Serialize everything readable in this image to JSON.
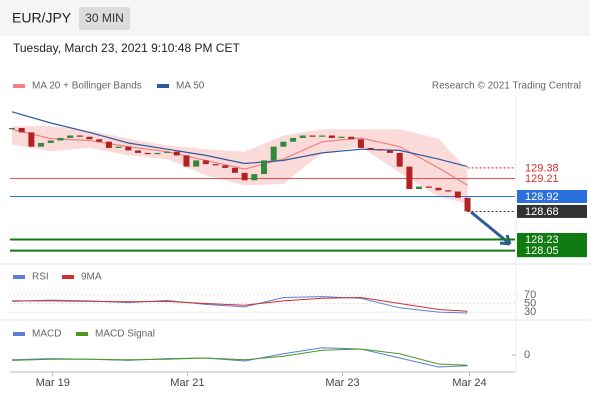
{
  "header": {
    "symbol": "EUR/JPY",
    "interval": "30 MIN",
    "timestamp": "Tuesday, March 23, 2021 9:10:48 PM CET",
    "credit": "Research © 2021 Trading Central"
  },
  "chart_data": [
    {
      "type": "candlestick",
      "x": [
        0,
        1,
        2,
        3,
        4,
        5,
        6,
        7,
        8,
        9,
        10,
        11,
        12,
        13,
        14,
        15,
        16,
        17,
        18,
        19,
        20,
        21,
        22,
        23,
        24,
        25,
        26,
        27,
        28,
        29,
        30,
        31,
        32,
        33,
        34,
        35,
        36,
        37,
        38,
        39,
        40,
        41,
        42,
        43,
        44,
        45,
        46,
        47
      ],
      "closes": [
        130.02,
        129.95,
        129.72,
        129.78,
        129.82,
        129.86,
        129.9,
        129.88,
        129.84,
        129.8,
        129.7,
        129.72,
        129.66,
        129.62,
        129.6,
        129.62,
        129.64,
        129.58,
        129.4,
        129.5,
        129.44,
        129.42,
        129.38,
        129.3,
        129.18,
        129.28,
        129.5,
        129.72,
        129.8,
        129.86,
        129.9,
        129.88,
        129.9,
        129.86,
        129.88,
        129.84,
        129.7,
        129.68,
        129.66,
        129.62,
        129.4,
        129.04,
        129.08,
        129.06,
        129.02,
        129.0,
        128.9,
        128.68
      ],
      "up_color": "#2e8b3a",
      "down_color": "#b22222",
      "overlays": [
        {
          "name": "MA 20 + Bollinger Bands",
          "color": "#f08080",
          "band_color": "#fbdada",
          "x": [
            0,
            4,
            8,
            12,
            16,
            20,
            24,
            28,
            32,
            36,
            40,
            44,
            47
          ],
          "values": [
            130.0,
            129.85,
            129.82,
            129.72,
            129.64,
            129.5,
            129.36,
            129.52,
            129.8,
            129.86,
            129.72,
            129.38,
            129.1
          ],
          "upper": [
            130.05,
            130.05,
            129.98,
            129.85,
            129.74,
            129.68,
            129.64,
            129.9,
            130.0,
            130.0,
            130.0,
            129.85,
            129.35
          ],
          "lower": [
            129.75,
            129.65,
            129.7,
            129.58,
            129.52,
            129.26,
            129.1,
            129.12,
            129.62,
            129.72,
            129.3,
            128.92,
            128.8
          ]
        },
        {
          "name": "MA 50",
          "color": "#2e5a9c",
          "x": [
            0,
            4,
            8,
            12,
            16,
            20,
            24,
            28,
            32,
            36,
            40,
            44,
            47
          ],
          "values": [
            130.28,
            130.1,
            129.95,
            129.78,
            129.68,
            129.58,
            129.45,
            129.5,
            129.62,
            129.68,
            129.66,
            129.52,
            129.4
          ]
        }
      ],
      "levels": [
        {
          "value": 129.38,
          "color": "#d32f2f",
          "boxed": false,
          "line": "dotted"
        },
        {
          "value": 129.21,
          "color": "#d32f2f",
          "boxed": false,
          "line": "solid"
        },
        {
          "value": 128.92,
          "color": "#2a6fdb",
          "boxed": true,
          "line": "solid"
        },
        {
          "value": 128.68,
          "color": "#333333",
          "boxed": true,
          "line": "dotted"
        },
        {
          "value": 128.23,
          "color": "#117a11",
          "boxed": true,
          "line": "solid"
        },
        {
          "value": 128.05,
          "color": "#117a11",
          "boxed": true,
          "line": "solid"
        }
      ],
      "xlim": [
        0,
        52
      ],
      "ylim": [
        127.9,
        130.47
      ],
      "xticks": [
        {
          "value": 4.2,
          "label": "Mar 19"
        },
        {
          "value": 18.1,
          "label": "Mar 21"
        },
        {
          "value": 34.1,
          "label": "Mar 23"
        },
        {
          "value": 47.2,
          "label": "Mar 24"
        }
      ]
    },
    {
      "type": "line",
      "x": [
        0,
        4,
        8,
        12,
        16,
        20,
        24,
        28,
        32,
        36,
        40,
        44,
        47
      ],
      "series": [
        {
          "name": "RSI",
          "color": "#5b7fd6",
          "values": [
            55,
            58,
            56,
            52,
            57,
            48,
            42,
            64,
            66,
            62,
            40,
            30,
            28
          ]
        },
        {
          "name": "9MA",
          "color": "#d32f2f",
          "values": [
            56,
            56,
            55,
            54,
            55,
            50,
            46,
            56,
            62,
            64,
            50,
            36,
            32
          ]
        }
      ],
      "xlim": [
        0,
        52
      ],
      "ylim": [
        0,
        100
      ],
      "yticks": [
        30,
        50,
        70
      ],
      "grid": true
    },
    {
      "type": "line",
      "x": [
        0,
        4,
        8,
        12,
        16,
        20,
        24,
        28,
        32,
        36,
        40,
        44,
        47
      ],
      "series": [
        {
          "name": "MACD",
          "color": "#5b7fd6",
          "values": [
            -0.08,
            -0.06,
            -0.07,
            -0.09,
            -0.06,
            -0.05,
            -0.1,
            0.02,
            0.12,
            0.1,
            -0.05,
            -0.2,
            -0.18
          ]
        },
        {
          "name": "MACD Signal",
          "color": "#4c9a1c",
          "values": [
            -0.09,
            -0.07,
            -0.07,
            -0.08,
            -0.07,
            -0.05,
            -0.08,
            -0.02,
            0.08,
            0.1,
            0.02,
            -0.15,
            -0.17
          ]
        }
      ],
      "xlim": [
        0,
        52
      ],
      "ylim": [
        -0.25,
        0.25
      ],
      "yticks": [
        0
      ],
      "grid": false
    }
  ]
}
